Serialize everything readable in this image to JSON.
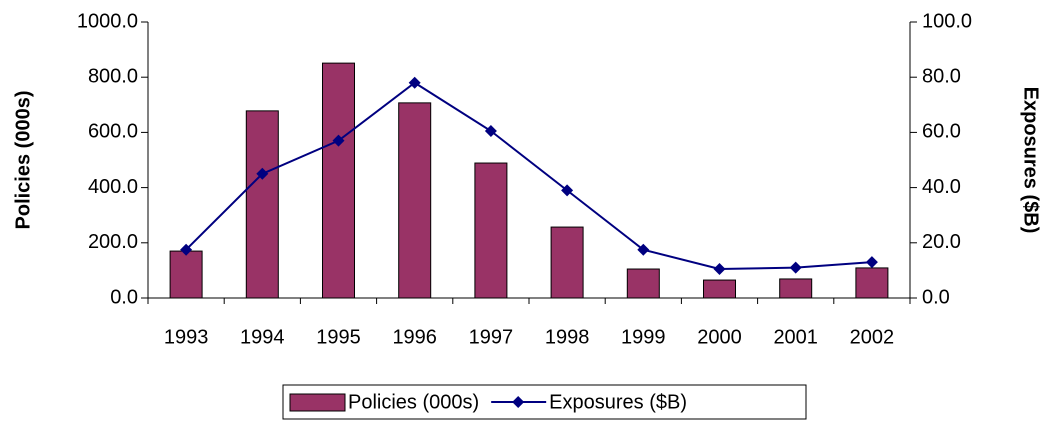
{
  "chart_data": {
    "type": "bar_line",
    "categories": [
      "1993",
      "1994",
      "1995",
      "1996",
      "1997",
      "1998",
      "1999",
      "2000",
      "2001",
      "2002"
    ],
    "series": [
      {
        "name": "Policies (000s)",
        "type": "bar",
        "color": "#993366",
        "values": [
          170,
          678,
          851,
          707,
          489,
          257,
          105,
          65,
          69,
          109
        ]
      },
      {
        "name": "Exposures ($B)",
        "type": "line",
        "axis": "y2",
        "color": "#000080",
        "values": [
          17.5,
          45,
          57,
          78,
          60.5,
          39,
          17.5,
          10.5,
          11,
          13
        ]
      }
    ],
    "ylabel": "Policies (000s)",
    "y2label": "Exposures ($B)",
    "ylim": [
      0,
      1000
    ],
    "yticks": [
      {
        "value": 0,
        "label": "0.0"
      },
      {
        "value": 200,
        "label": "200.0"
      },
      {
        "value": 400,
        "label": "400.0"
      },
      {
        "value": 600,
        "label": "600.0"
      },
      {
        "value": 800,
        "label": "800.0"
      },
      {
        "value": 1000,
        "label": "1000.0"
      }
    ],
    "y2lim": [
      0,
      100
    ],
    "y2ticks": [
      {
        "value": 0,
        "label": "0.0"
      },
      {
        "value": 20,
        "label": "20.0"
      },
      {
        "value": 40,
        "label": "40.0"
      },
      {
        "value": 60,
        "label": "60.0"
      },
      {
        "value": 80,
        "label": "80.0"
      },
      {
        "value": 100,
        "label": "100.0"
      }
    ],
    "legend": "bottom"
  }
}
